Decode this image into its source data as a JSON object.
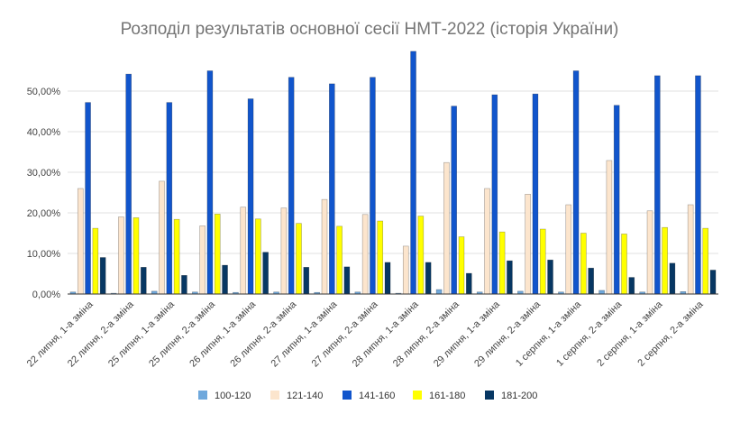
{
  "chart_data": {
    "type": "bar",
    "title": "Розподіл результатів основної сесії НМТ-2022 (історія України)",
    "xlabel": "",
    "ylabel": "",
    "ylim": [
      0,
      60
    ],
    "yticks": [
      "0,00%",
      "10,00%",
      "20,00%",
      "30,00%",
      "40,00%",
      "50,00%"
    ],
    "grid": true,
    "legend_position": "bottom",
    "categories": [
      "22 липня, 1-а зміна",
      "22 липня, 2-а зміна",
      "25 липня, 1-а зміна",
      "25 липня, 2-а зміна",
      "26 липня, 1-а зміна",
      "26 липня, 2-а зміна",
      "27 липня, 1-а зміна",
      "27 липня, 2-а зміна",
      "28 липня, 1-а зміна",
      "28 липня, 2-а зміна",
      "29 липня, 1-а зміна",
      "29 липня, 2-а зміна",
      "1 серпня, 1-а зміна",
      "1 серпня, 2-а зміна",
      "2 серпня, 1-а зміна",
      "2 серпня, 2-а зміна"
    ],
    "series": [
      {
        "name": "100-120",
        "color": "#6fa8dc",
        "values": [
          0.5,
          0.2,
          0.7,
          0.5,
          0.4,
          0.5,
          0.4,
          0.5,
          0.2,
          1.1,
          0.5,
          0.7,
          0.5,
          0.9,
          0.5,
          0.6
        ]
      },
      {
        "name": "121-140",
        "color": "#fce5cd",
        "values": [
          26.0,
          19.0,
          27.8,
          16.8,
          21.4,
          21.2,
          23.3,
          19.6,
          11.8,
          32.4,
          26.0,
          24.6,
          22.0,
          32.9,
          20.5,
          22.0
        ]
      },
      {
        "name": "141-160",
        "color": "#1155cc",
        "values": [
          47.2,
          54.2,
          47.2,
          55.0,
          48.1,
          53.4,
          51.8,
          53.4,
          59.8,
          46.3,
          49.1,
          49.3,
          55.0,
          46.5,
          53.8,
          53.8
        ]
      },
      {
        "name": "161-180",
        "color": "#ffff00",
        "values": [
          16.2,
          18.8,
          18.4,
          19.7,
          18.5,
          17.4,
          16.7,
          18.0,
          19.2,
          14.1,
          15.3,
          16.0,
          15.0,
          14.8,
          16.4,
          16.2
        ]
      },
      {
        "name": "181-200",
        "color": "#073763",
        "values": [
          9.0,
          6.6,
          4.6,
          7.1,
          10.3,
          6.6,
          6.7,
          7.8,
          7.8,
          5.1,
          8.2,
          8.4,
          6.4,
          4.1,
          7.6,
          5.9
        ]
      }
    ]
  }
}
